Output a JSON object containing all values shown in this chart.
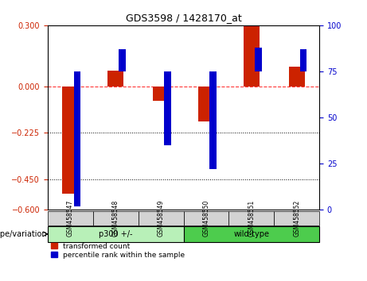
{
  "title": "GDS3598 / 1428170_at",
  "samples": [
    "GSM458547",
    "GSM458548",
    "GSM458549",
    "GSM458550",
    "GSM458551",
    "GSM458552"
  ],
  "red_values": [
    -0.52,
    0.08,
    -0.07,
    -0.17,
    0.3,
    0.1
  ],
  "blue_values_left": [
    0.02,
    0.87,
    0.35,
    0.22,
    0.88,
    0.87
  ],
  "ylim_left": [
    -0.6,
    0.3
  ],
  "ylim_right": [
    0,
    100
  ],
  "yticks_left": [
    0.3,
    0,
    -0.225,
    -0.45,
    -0.6
  ],
  "yticks_right": [
    100,
    75,
    50,
    25,
    0
  ],
  "hlines": [
    -0.225,
    -0.45
  ],
  "zero_line": 0,
  "bar_width": 0.35,
  "blue_bar_width": 0.15,
  "groups": [
    {
      "label": "p300 +/-",
      "indices": [
        0,
        1,
        2
      ],
      "color": "#90EE90"
    },
    {
      "label": "wild-type",
      "indices": [
        3,
        4,
        5
      ],
      "color": "#32CD32"
    }
  ],
  "red_color": "#CC2200",
  "blue_color": "#0000CC",
  "background_color": "#FFFFFF",
  "plot_bg": "#FFFFFF",
  "left_tick_color": "#CC2200",
  "right_tick_color": "#0000CC",
  "genotype_label": "genotype/variation",
  "legend_red": "transformed count",
  "legend_blue": "percentile rank within the sample"
}
